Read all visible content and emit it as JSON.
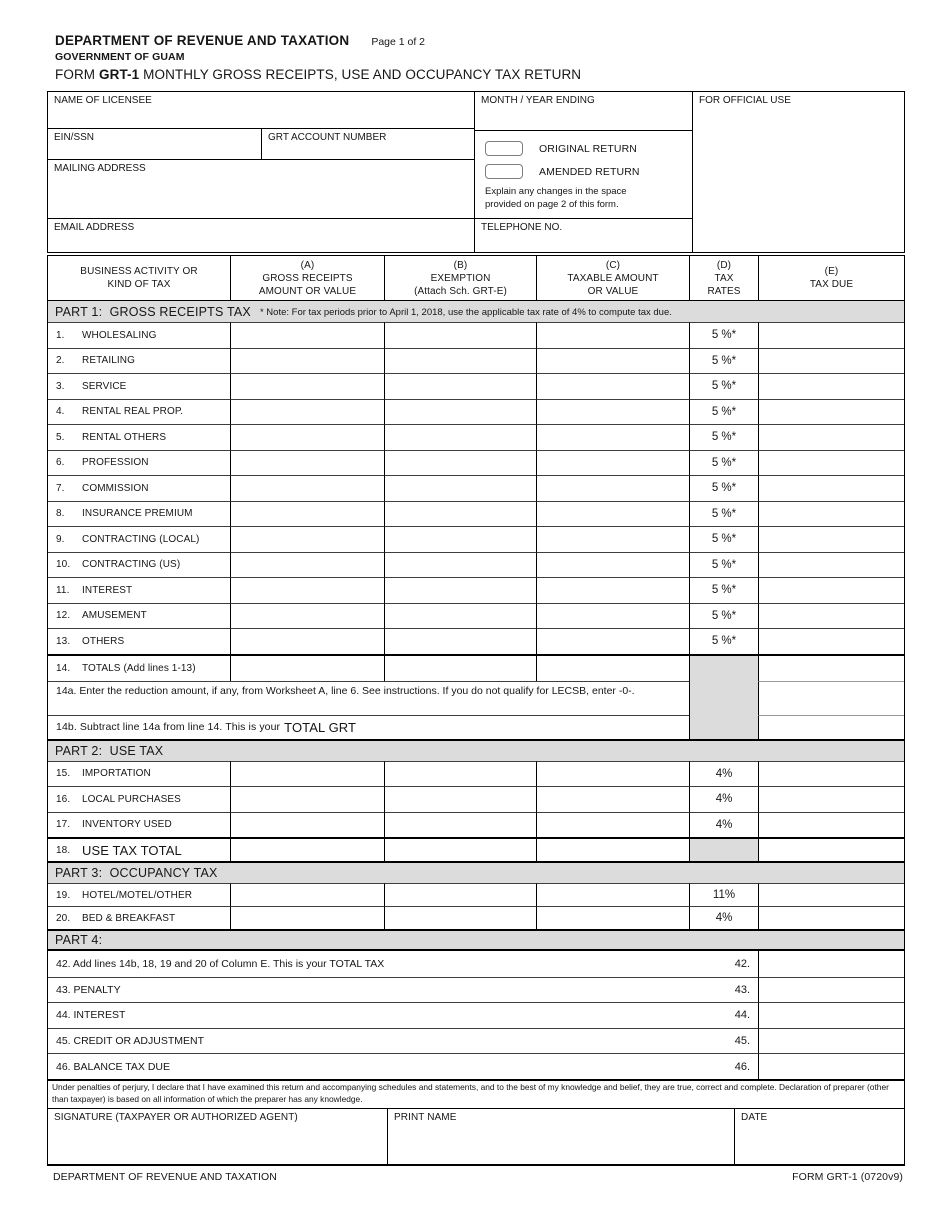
{
  "header": {
    "department": "DEPARTMENT OF REVENUE AND TAXATION",
    "page": "Page 1 of 2",
    "government": "GOVERNMENT OF GUAM",
    "form_word": "FORM ",
    "form_number": "GRT-1",
    "form_title": " MONTHLY GROSS RECEIPTS, USE AND OCCUPANCY TAX RETURN"
  },
  "info": {
    "name_label": "NAME OF LICENSEE",
    "ein_label": "EIN/SSN",
    "grt_account_label": "GRT ACCOUNT NUMBER",
    "mailing_label": "MAILING ADDRESS",
    "email_label": "EMAIL ADDRESS",
    "month_year_label": "MONTH / YEAR ENDING",
    "official_use_label": "FOR OFFICIAL USE",
    "original_return_label": "ORIGINAL RETURN",
    "amended_return_label": "AMENDED RETURN",
    "amended_note": "Explain any changes in the space provided on page 2 of this form.",
    "telephone_label": "TELEPHONE NO."
  },
  "cols": {
    "activity": [
      "BUSINESS ACTIVITY OR",
      "KIND OF TAX"
    ],
    "a": [
      "(A)",
      "GROSS RECEIPTS",
      "AMOUNT OR VALUE"
    ],
    "b": [
      "(B)",
      "EXEMPTION",
      "(Attach Sch. GRT-E)"
    ],
    "c": [
      "(C)",
      "TAXABLE AMOUNT",
      "OR VALUE"
    ],
    "d": [
      "(D)",
      "TAX",
      "RATES"
    ],
    "e": [
      "(E)",
      "TAX DUE"
    ]
  },
  "part1": {
    "title": "PART 1:  GROSS RECEIPTS TAX",
    "note": "* Note: For tax periods prior to April 1, 2018, use the applicable tax rate of 4% to compute tax due.",
    "rows": [
      {
        "num": "1.",
        "label": "WHOLESALING",
        "rate": "5 %*"
      },
      {
        "num": "2.",
        "label": "RETAILING",
        "rate": "5 %*"
      },
      {
        "num": "3.",
        "label": "SERVICE",
        "rate": "5 %*"
      },
      {
        "num": "4.",
        "label": "RENTAL REAL PROP.",
        "rate": "5 %*"
      },
      {
        "num": "5.",
        "label": "RENTAL OTHERS",
        "rate": "5 %*"
      },
      {
        "num": "6.",
        "label": "PROFESSION",
        "rate": "5 %*"
      },
      {
        "num": "7.",
        "label": "COMMISSION",
        "rate": "5 %*"
      },
      {
        "num": "8.",
        "label": "INSURANCE PREMIUM",
        "rate": "5 %*"
      },
      {
        "num": "9.",
        "label": "CONTRACTING (LOCAL)",
        "rate": "5 %*"
      },
      {
        "num": "10.",
        "label": "CONTRACTING (US)",
        "rate": "5 %*"
      },
      {
        "num": "11.",
        "label": "INTEREST",
        "rate": "5 %*"
      },
      {
        "num": "12.",
        "label": "AMUSEMENT",
        "rate": "5 %*"
      },
      {
        "num": "13.",
        "label": "OTHERS",
        "rate": "5 %*"
      }
    ],
    "row14": {
      "num": "14.",
      "label": "TOTALS (Add lines 1-13)"
    },
    "row14a": {
      "text": "14a. Enter the reduction amount, if any, from Worksheet A, line 6.  See instructions.  If you do not qualify for LECSB, enter -0-."
    },
    "row14b": {
      "text": "14b. Subtract line 14a from line 14.  This is your",
      "big": "TOTAL GRT"
    }
  },
  "part2": {
    "title": "PART 2:  USE TAX",
    "rows": [
      {
        "num": "15.",
        "label": "IMPORTATION",
        "rate": "4%"
      },
      {
        "num": "16.",
        "label": "LOCAL PURCHASES",
        "rate": "4%"
      },
      {
        "num": "17.",
        "label": "INVENTORY USED",
        "rate": "4%"
      }
    ],
    "row18": {
      "num": "18.",
      "label": "USE TAX TOTAL"
    }
  },
  "part3": {
    "title": "PART 3:  OCCUPANCY TAX",
    "rows": [
      {
        "num": "19.",
        "label": "HOTEL/MOTEL/OTHER",
        "rate": "11%"
      },
      {
        "num": "20.",
        "label": "BED & BREAKFAST",
        "rate": "4%"
      }
    ]
  },
  "part4": {
    "title": "PART 4:",
    "rows": [
      {
        "text": "42. Add lines 14b, 18, 19 and 20 of Column E.  This is your TOTAL TAX",
        "num": "42."
      },
      {
        "text": "43. PENALTY",
        "num": "43."
      },
      {
        "text": "44. INTEREST",
        "num": "44."
      },
      {
        "text": "45. CREDIT OR ADJUSTMENT",
        "num": "45."
      },
      {
        "text": "46. BALANCE TAX DUE",
        "num": "46."
      }
    ]
  },
  "declaration": "Under penalties of perjury, I declare that I have examined this return and accompanying schedules and statements, and to the best of my knowledge and belief, they are true, correct and complete.  Declaration of preparer (other than taxpayer) is based on all information of which the preparer has any knowledge.",
  "signature": {
    "signature_label": "SIGNATURE (TAXPAYER OR AUTHORIZED AGENT)",
    "print_name_label": "PRINT NAME",
    "date_label": "DATE"
  },
  "footer": {
    "left": "DEPARTMENT OF REVENUE AND TAXATION",
    "right": "FORM GRT-1 (0720v9)"
  },
  "colors": {
    "shade": "#dcdcdc",
    "line": "#000000"
  }
}
